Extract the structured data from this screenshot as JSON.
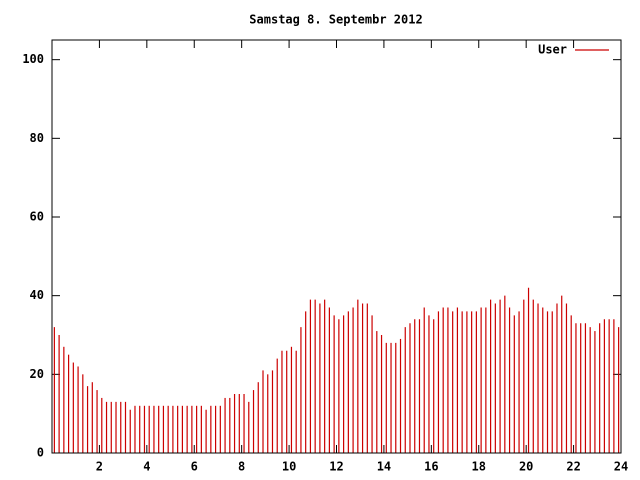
{
  "chart_data": {
    "type": "impulse",
    "title": "Samstag 8. Septembr 2012",
    "xlim": [
      0,
      24
    ],
    "xticks": [
      2,
      4,
      6,
      8,
      10,
      12,
      14,
      16,
      18,
      20,
      22,
      24
    ],
    "ylim": [
      0,
      105
    ],
    "yticks": [
      0,
      20,
      40,
      60,
      80,
      100
    ],
    "legend": "top right",
    "series": [
      {
        "name": "User",
        "color": "#cc0000",
        "x": [
          0.1,
          0.3,
          0.5,
          0.7,
          0.9,
          1.1,
          1.3,
          1.5,
          1.7,
          1.9,
          2.1,
          2.3,
          2.5,
          2.7,
          2.9,
          3.1,
          3.3,
          3.5,
          3.7,
          3.9,
          4.1,
          4.3,
          4.5,
          4.7,
          4.9,
          5.1,
          5.3,
          5.5,
          5.7,
          5.9,
          6.1,
          6.3,
          6.5,
          6.7,
          6.9,
          7.1,
          7.3,
          7.5,
          7.7,
          7.9,
          8.1,
          8.3,
          8.5,
          8.7,
          8.9,
          9.1,
          9.3,
          9.5,
          9.7,
          9.9,
          10.1,
          10.3,
          10.5,
          10.7,
          10.9,
          11.1,
          11.3,
          11.5,
          11.7,
          11.9,
          12.1,
          12.3,
          12.5,
          12.7,
          12.9,
          13.1,
          13.3,
          13.5,
          13.7,
          13.9,
          14.1,
          14.3,
          14.5,
          14.7,
          14.9,
          15.1,
          15.3,
          15.5,
          15.7,
          15.9,
          16.1,
          16.3,
          16.5,
          16.7,
          16.9,
          17.1,
          17.3,
          17.5,
          17.7,
          17.9,
          18.1,
          18.3,
          18.5,
          18.7,
          18.9,
          19.1,
          19.3,
          19.5,
          19.7,
          19.9,
          20.1,
          20.3,
          20.5,
          20.7,
          20.9,
          21.1,
          21.3,
          21.5,
          21.7,
          21.9,
          22.1,
          22.3,
          22.5,
          22.7,
          22.9,
          23.1,
          23.3,
          23.5,
          23.7,
          23.9
        ],
        "values": [
          32,
          30,
          27,
          25,
          23,
          22,
          20,
          17,
          18,
          16,
          14,
          13,
          13,
          13,
          13,
          13,
          11,
          12,
          12,
          12,
          12,
          12,
          12,
          12,
          12,
          12,
          12,
          12,
          12,
          12,
          12,
          12,
          11,
          12,
          12,
          12,
          14,
          14,
          15,
          15,
          15,
          13,
          16,
          18,
          21,
          20,
          21,
          24,
          26,
          26,
          27,
          26,
          32,
          36,
          39,
          39,
          38,
          39,
          37,
          35,
          34,
          35,
          36,
          37,
          39,
          38,
          38,
          35,
          31,
          30,
          28,
          28,
          28,
          29,
          32,
          33,
          34,
          34,
          37,
          35,
          34,
          36,
          37,
          37,
          36,
          37,
          36,
          36,
          36,
          36,
          37,
          37,
          39,
          38,
          39,
          40,
          37,
          35,
          36,
          39,
          42,
          39,
          38,
          37,
          36,
          36,
          38,
          40,
          38,
          35,
          33,
          33,
          33,
          32,
          31,
          33,
          34,
          34,
          34,
          32
        ]
      }
    ]
  }
}
